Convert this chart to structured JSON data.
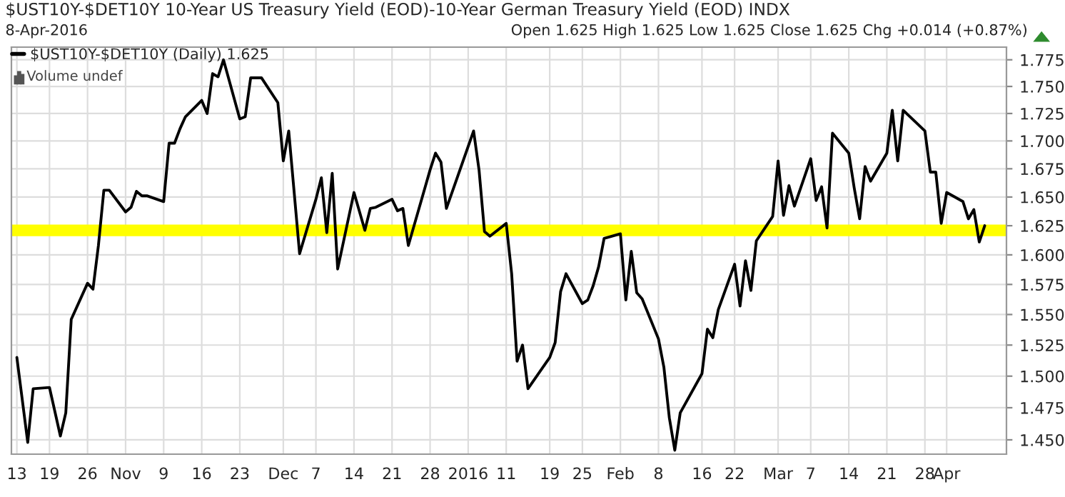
{
  "chart_data": {
    "type": "line",
    "title": "$UST10Y-$DET10Y 10-Year US Treasury Yield (EOD)-10-Year German Treasury Yield (EOD) INDX",
    "subtitle": "8-Apr-2016",
    "annotations": [
      "Open 1.625 High 1.625 Low 1.625 Close 1.625 Chg +0.014 (+0.87%)",
      "Volume undef"
    ],
    "x": [
      "2015-10-13",
      "2015-10-15",
      "2015-10-16",
      "2015-10-19",
      "2015-10-21",
      "2015-10-22",
      "2015-10-23",
      "2015-10-26",
      "2015-10-27",
      "2015-10-28",
      "2015-10-29",
      "2015-10-30",
      "2015-11-02",
      "2015-11-03",
      "2015-11-04",
      "2015-11-05",
      "2015-11-06",
      "2015-11-09",
      "2015-11-10",
      "2015-11-11",
      "2015-11-12",
      "2015-11-13",
      "2015-11-16",
      "2015-11-17",
      "2015-11-18",
      "2015-11-19",
      "2015-11-20",
      "2015-11-23",
      "2015-11-24",
      "2015-11-25",
      "2015-11-27",
      "2015-11-30",
      "2015-12-01",
      "2015-12-02",
      "2015-12-04",
      "2015-12-07",
      "2015-12-08",
      "2015-12-09",
      "2015-12-10",
      "2015-12-11",
      "2015-12-14",
      "2015-12-16",
      "2015-12-17",
      "2015-12-18",
      "2015-12-21",
      "2015-12-22",
      "2015-12-23",
      "2015-12-24",
      "2015-12-28",
      "2015-12-29",
      "2015-12-30",
      "2015-12-31",
      "2016-01-05",
      "2016-01-06",
      "2016-01-07",
      "2016-01-08",
      "2016-01-11",
      "2016-01-12",
      "2016-01-13",
      "2016-01-14",
      "2016-01-15",
      "2016-01-19",
      "2016-01-20",
      "2016-01-21",
      "2016-01-22",
      "2016-01-25",
      "2016-01-26",
      "2016-01-27",
      "2016-01-28",
      "2016-01-29",
      "2016-02-01",
      "2016-02-02",
      "2016-02-03",
      "2016-02-04",
      "2016-02-05",
      "2016-02-08",
      "2016-02-09",
      "2016-02-10",
      "2016-02-11",
      "2016-02-12",
      "2016-02-16",
      "2016-02-17",
      "2016-02-18",
      "2016-02-19",
      "2016-02-22",
      "2016-02-23",
      "2016-02-24",
      "2016-02-25",
      "2016-02-26",
      "2016-02-29",
      "2016-03-01",
      "2016-03-02",
      "2016-03-03",
      "2016-03-04",
      "2016-03-07",
      "2016-03-08",
      "2016-03-09",
      "2016-03-10",
      "2016-03-11",
      "2016-03-14",
      "2016-03-15",
      "2016-03-16",
      "2016-03-17",
      "2016-03-18",
      "2016-03-21",
      "2016-03-22",
      "2016-03-23",
      "2016-03-24",
      "2016-03-28",
      "2016-03-29",
      "2016-03-30",
      "2016-03-31",
      "2016-04-01",
      "2016-04-04",
      "2016-04-05",
      "2016-04-06",
      "2016-04-07",
      "2016-04-08"
    ],
    "series": [
      {
        "name": "$UST10Y-$DET10Y (Daily) 1.625",
        "color": "#000000",
        "values": [
          1.515,
          1.448,
          1.49,
          1.491,
          1.453,
          1.471,
          1.546,
          1.576,
          1.571,
          1.608,
          1.656,
          1.656,
          1.637,
          1.641,
          1.655,
          1.651,
          1.651,
          1.646,
          1.698,
          1.698,
          1.711,
          1.722,
          1.737,
          1.725,
          1.762,
          1.759,
          1.775,
          1.72,
          1.722,
          1.758,
          1.758,
          1.735,
          1.682,
          1.709,
          1.601,
          1.648,
          1.667,
          1.619,
          1.671,
          1.588,
          1.654,
          1.621,
          1.64,
          1.641,
          1.648,
          1.638,
          1.64,
          1.608,
          1.674,
          1.689,
          1.681,
          1.64,
          1.709,
          1.674,
          1.62,
          1.616,
          1.627,
          1.584,
          1.512,
          1.525,
          1.49,
          1.515,
          1.527,
          1.569,
          1.584,
          1.559,
          1.562,
          1.574,
          1.59,
          1.614,
          1.618,
          1.562,
          1.603,
          1.568,
          1.563,
          1.53,
          1.507,
          1.467,
          1.442,
          1.471,
          1.502,
          1.538,
          1.531,
          1.554,
          1.592,
          1.557,
          1.595,
          1.57,
          1.612,
          1.633,
          1.682,
          1.634,
          1.66,
          1.642,
          1.684,
          1.647,
          1.659,
          1.623,
          1.707,
          1.689,
          1.658,
          1.631,
          1.677,
          1.664,
          1.689,
          1.728,
          1.682,
          1.728,
          1.709,
          1.672,
          1.672,
          1.627,
          1.654,
          1.646,
          1.631,
          1.639,
          1.611,
          1.625
        ],
        "line_style": "solid"
      }
    ],
    "bands": [
      {
        "axis": "y",
        "from": 1.616,
        "to": 1.626,
        "color": "#ffff00"
      }
    ],
    "log": "y",
    "xlim": [
      "2015-10-12",
      "2016-04-12"
    ],
    "xticks": [
      {
        "value": "2015-10-13",
        "label": "13"
      },
      {
        "value": "2015-10-19",
        "label": "19"
      },
      {
        "value": "2015-10-26",
        "label": "26"
      },
      {
        "value": "2015-11-02",
        "label": "Nov"
      },
      {
        "value": "2015-11-09",
        "label": "9"
      },
      {
        "value": "2015-11-16",
        "label": "16"
      },
      {
        "value": "2015-11-23",
        "label": "23"
      },
      {
        "value": "2015-12-01",
        "label": "Dec"
      },
      {
        "value": "2015-12-07",
        "label": "7"
      },
      {
        "value": "2015-12-14",
        "label": "14"
      },
      {
        "value": "2015-12-21",
        "label": "21"
      },
      {
        "value": "2015-12-28",
        "label": "28"
      },
      {
        "value": "2016-01-04",
        "label": "2016"
      },
      {
        "value": "2016-01-11",
        "label": "11"
      },
      {
        "value": "2016-01-19",
        "label": "19"
      },
      {
        "value": "2016-01-25",
        "label": "25"
      },
      {
        "value": "2016-02-01",
        "label": "Feb"
      },
      {
        "value": "2016-02-08",
        "label": "8"
      },
      {
        "value": "2016-02-16",
        "label": "16"
      },
      {
        "value": "2016-02-22",
        "label": "22"
      },
      {
        "value": "2016-03-01",
        "label": "Mar"
      },
      {
        "value": "2016-03-07",
        "label": "7"
      },
      {
        "value": "2016-03-14",
        "label": "14"
      },
      {
        "value": "2016-03-21",
        "label": "21"
      },
      {
        "value": "2016-03-28",
        "label": "28"
      },
      {
        "value": "2016-04-01",
        "label": "Apr"
      }
    ],
    "ylim": [
      1.439,
      1.787
    ],
    "yticks": [
      {
        "value": 1.45,
        "label": "1.450"
      },
      {
        "value": 1.475,
        "label": "1.475"
      },
      {
        "value": 1.5,
        "label": "1.500"
      },
      {
        "value": 1.525,
        "label": "1.525"
      },
      {
        "value": 1.55,
        "label": "1.550"
      },
      {
        "value": 1.575,
        "label": "1.575"
      },
      {
        "value": 1.6,
        "label": "1.600"
      },
      {
        "value": 1.625,
        "label": "1.625"
      },
      {
        "value": 1.65,
        "label": "1.650"
      },
      {
        "value": 1.675,
        "label": "1.675"
      },
      {
        "value": 1.7,
        "label": "1.700"
      },
      {
        "value": 1.725,
        "label": "1.725"
      },
      {
        "value": 1.75,
        "label": "1.750"
      },
      {
        "value": 1.775,
        "label": "1.775"
      }
    ],
    "grid": true,
    "legend": "top left"
  }
}
